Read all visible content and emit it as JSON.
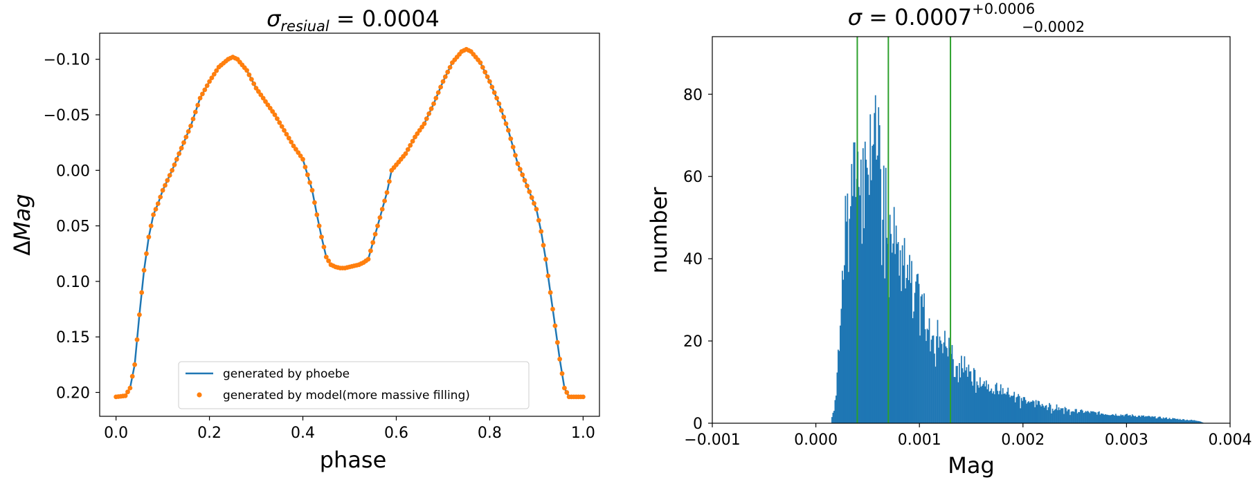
{
  "chart_data": [
    {
      "type": "line",
      "title_symbol": "σ",
      "title_subscript": "resiual",
      "title_rest": " = 0.0004",
      "xlabel": "phase",
      "ylabel_symbol": "Δ",
      "ylabel_var": "Mag",
      "xlim": [
        -0.035,
        1.035
      ],
      "ylim": [
        0.2215,
        -0.1235
      ],
      "y_inverted": true,
      "xticks": [
        0.0,
        0.2,
        0.4,
        0.6,
        0.8,
        1.0
      ],
      "xtick_labels": [
        "0.0",
        "0.2",
        "0.4",
        "0.6",
        "0.8",
        "1.0"
      ],
      "yticks": [
        -0.1,
        -0.05,
        0.0,
        0.05,
        0.1,
        0.15,
        0.2
      ],
      "ytick_labels": [
        "−0.10",
        "−0.05",
        "0.00",
        "0.05",
        "0.10",
        "0.15",
        "0.20"
      ],
      "legend_position": "lower-center",
      "series": [
        {
          "name": "generated by phoebe",
          "style": "line",
          "color": "#1f77b4",
          "x": [
            0.0,
            0.02,
            0.03,
            0.04,
            0.05,
            0.06,
            0.07,
            0.08,
            0.09,
            0.1,
            0.12,
            0.14,
            0.16,
            0.18,
            0.2,
            0.22,
            0.24,
            0.25,
            0.26,
            0.28,
            0.3,
            0.32,
            0.34,
            0.36,
            0.38,
            0.4,
            0.42,
            0.43,
            0.44,
            0.45,
            0.46,
            0.47,
            0.48,
            0.49,
            0.5,
            0.51,
            0.52,
            0.53,
            0.54,
            0.55,
            0.56,
            0.57,
            0.58,
            0.59,
            0.6,
            0.62,
            0.64,
            0.66,
            0.68,
            0.7,
            0.72,
            0.74,
            0.75,
            0.76,
            0.78,
            0.8,
            0.82,
            0.84,
            0.86,
            0.88,
            0.9,
            0.91,
            0.92,
            0.93,
            0.94,
            0.95,
            0.96,
            0.97,
            0.98,
            1.0
          ],
          "y": [
            0.204,
            0.203,
            0.196,
            0.175,
            0.13,
            0.09,
            0.06,
            0.04,
            0.03,
            0.018,
            0.0,
            -0.02,
            -0.04,
            -0.065,
            -0.08,
            -0.093,
            -0.1,
            -0.102,
            -0.1,
            -0.09,
            -0.074,
            -0.062,
            -0.05,
            -0.036,
            -0.022,
            -0.01,
            0.018,
            0.04,
            0.06,
            0.078,
            0.085,
            0.087,
            0.088,
            0.088,
            0.087,
            0.086,
            0.085,
            0.083,
            0.08,
            0.065,
            0.05,
            0.035,
            0.02,
            0.0,
            -0.005,
            -0.015,
            -0.03,
            -0.042,
            -0.06,
            -0.08,
            -0.097,
            -0.107,
            -0.109,
            -0.107,
            -0.097,
            -0.08,
            -0.06,
            -0.036,
            -0.006,
            0.014,
            0.035,
            0.055,
            0.08,
            0.11,
            0.14,
            0.17,
            0.196,
            0.204,
            0.204,
            0.204
          ]
        },
        {
          "name": "generated by model(more massive filling)",
          "style": "scatter",
          "color": "#ff7f0e"
        }
      ]
    },
    {
      "type": "histogram",
      "title_symbol": "σ",
      "title_value": " = 0.0007",
      "title_sup": "+0.0006",
      "title_sub": "−0.0002",
      "xlabel": "Mag",
      "ylabel": "number",
      "xlim": [
        -0.001,
        0.004
      ],
      "ylim": [
        0,
        94
      ],
      "xticks": [
        -0.001,
        0.0,
        0.001,
        0.002,
        0.003,
        0.004
      ],
      "xtick_labels": [
        "−0.001",
        "0.000",
        "0.001",
        "0.002",
        "0.003",
        "0.004"
      ],
      "yticks": [
        0,
        20,
        40,
        60,
        80
      ],
      "ytick_labels": [
        "0",
        "20",
        "40",
        "60",
        "80"
      ],
      "bar_color": "#1f77b4",
      "vline_color": "#2ca02c",
      "vlines": [
        0.0004,
        0.0007,
        0.0013
      ],
      "bin_width": 1e-05,
      "bin_start": 0.00015,
      "bin_end": 0.00375,
      "envelope": {
        "x": [
          0.00015,
          0.00018,
          0.00022,
          0.00026,
          0.0003,
          0.00035,
          0.0004,
          0.00045,
          0.0005,
          0.00055,
          0.0006,
          0.0007,
          0.0008,
          0.0009,
          0.001,
          0.0011,
          0.0012,
          0.0013,
          0.0014,
          0.0015,
          0.0017,
          0.0019,
          0.0021,
          0.0023,
          0.0025,
          0.0028,
          0.0031,
          0.0034,
          0.0037,
          0.00375
        ],
        "y": [
          1,
          4,
          18,
          40,
          52,
          58,
          62,
          68,
          72,
          71,
          66,
          52,
          44,
          36,
          30,
          25,
          21,
          18,
          15,
          12,
          9,
          7,
          5,
          4,
          3,
          2.3,
          1.8,
          1.2,
          0.6,
          0
        ]
      }
    }
  ]
}
